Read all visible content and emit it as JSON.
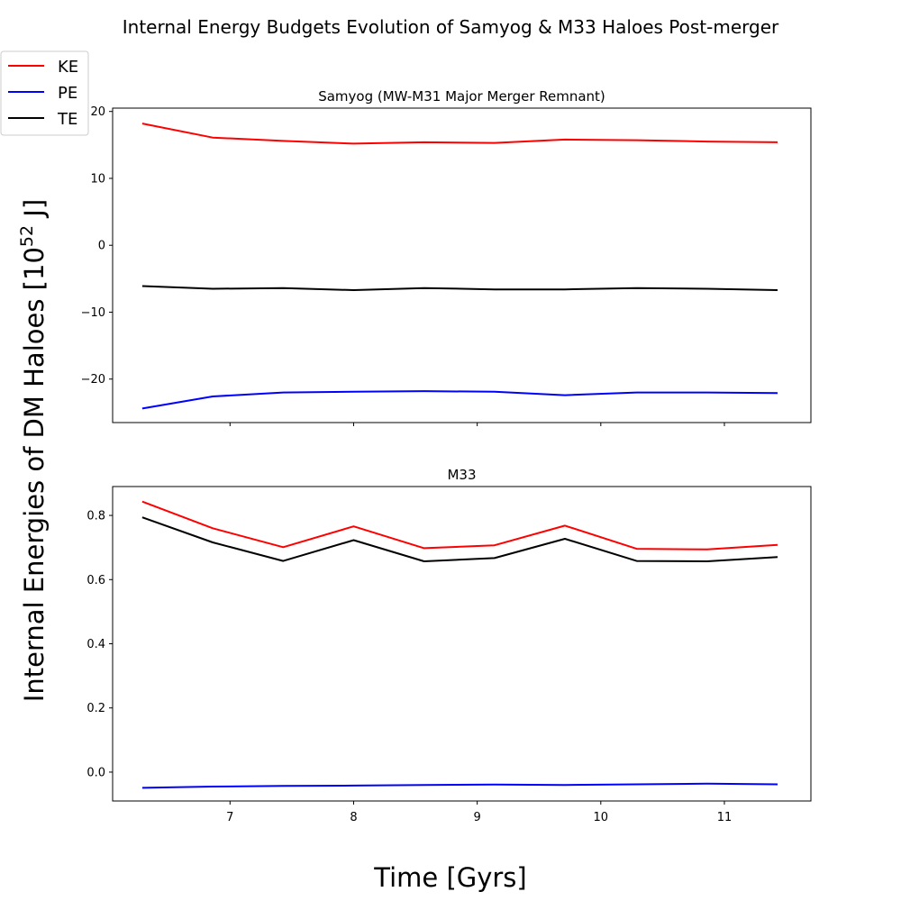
{
  "figure": {
    "title": "Internal Energy Budgets Evolution of Samyog & M33 Haloes Post-merger",
    "ylabel_main": "Internal Energies of DM Haloes [10",
    "ylabel_sup": "52",
    "ylabel_tail": " J]",
    "xlabel": "Time [Gyrs]"
  },
  "legend": {
    "placement": "upper-left",
    "entries": [
      {
        "label": "KE",
        "color": "#ff0000"
      },
      {
        "label": "PE",
        "color": "#0000ff"
      },
      {
        "label": "TE",
        "color": "#000000"
      }
    ]
  },
  "chart_data": [
    {
      "type": "line",
      "title": "Samyog (MW-M31 Major Merger Remnant)",
      "xlim": [
        6.05,
        11.7
      ],
      "ylim": [
        -26.5,
        20.5
      ],
      "xticks": [
        7,
        8,
        9,
        10,
        11
      ],
      "xtick_labels": [
        "",
        "",
        "",
        "",
        ""
      ],
      "yticks": [
        -20,
        -10,
        0,
        10,
        20
      ],
      "ytick_labels": [
        "−20",
        "−10",
        "0",
        "10",
        "20"
      ],
      "x": [
        6.29,
        6.86,
        7.43,
        8.0,
        8.57,
        9.14,
        9.71,
        10.29,
        10.86,
        11.43
      ],
      "series": [
        {
          "name": "KE",
          "color": "#ff0000",
          "values": [
            18.2,
            16.1,
            15.6,
            15.2,
            15.4,
            15.3,
            15.8,
            15.7,
            15.5,
            15.4
          ]
        },
        {
          "name": "PE",
          "color": "#0000ff",
          "values": [
            -24.4,
            -22.6,
            -22.0,
            -21.9,
            -21.8,
            -21.9,
            -22.4,
            -22.0,
            -22.0,
            -22.1
          ]
        },
        {
          "name": "TE",
          "color": "#000000",
          "values": [
            -6.1,
            -6.5,
            -6.4,
            -6.7,
            -6.4,
            -6.6,
            -6.6,
            -6.4,
            -6.5,
            -6.7
          ]
        }
      ]
    },
    {
      "type": "line",
      "title": "M33",
      "xlim": [
        6.05,
        11.7
      ],
      "ylim": [
        -0.09,
        0.89
      ],
      "xticks": [
        7,
        8,
        9,
        10,
        11
      ],
      "xtick_labels": [
        "7",
        "8",
        "9",
        "10",
        "11"
      ],
      "yticks": [
        0.0,
        0.2,
        0.4,
        0.6,
        0.8
      ],
      "ytick_labels": [
        "0.0",
        "0.2",
        "0.4",
        "0.6",
        "0.8"
      ],
      "x": [
        6.29,
        6.86,
        7.43,
        8.0,
        8.57,
        9.14,
        9.71,
        10.29,
        10.86,
        11.43
      ],
      "series": [
        {
          "name": "KE",
          "color": "#ff0000",
          "values": [
            0.843,
            0.76,
            0.701,
            0.766,
            0.698,
            0.707,
            0.768,
            0.696,
            0.694,
            0.708
          ]
        },
        {
          "name": "PE",
          "color": "#0000ff",
          "values": [
            -0.049,
            -0.045,
            -0.043,
            -0.042,
            -0.04,
            -0.039,
            -0.04,
            -0.038,
            -0.036,
            -0.038
          ]
        },
        {
          "name": "TE",
          "color": "#000000",
          "values": [
            0.794,
            0.716,
            0.658,
            0.723,
            0.657,
            0.667,
            0.727,
            0.658,
            0.657,
            0.67
          ]
        }
      ]
    }
  ]
}
